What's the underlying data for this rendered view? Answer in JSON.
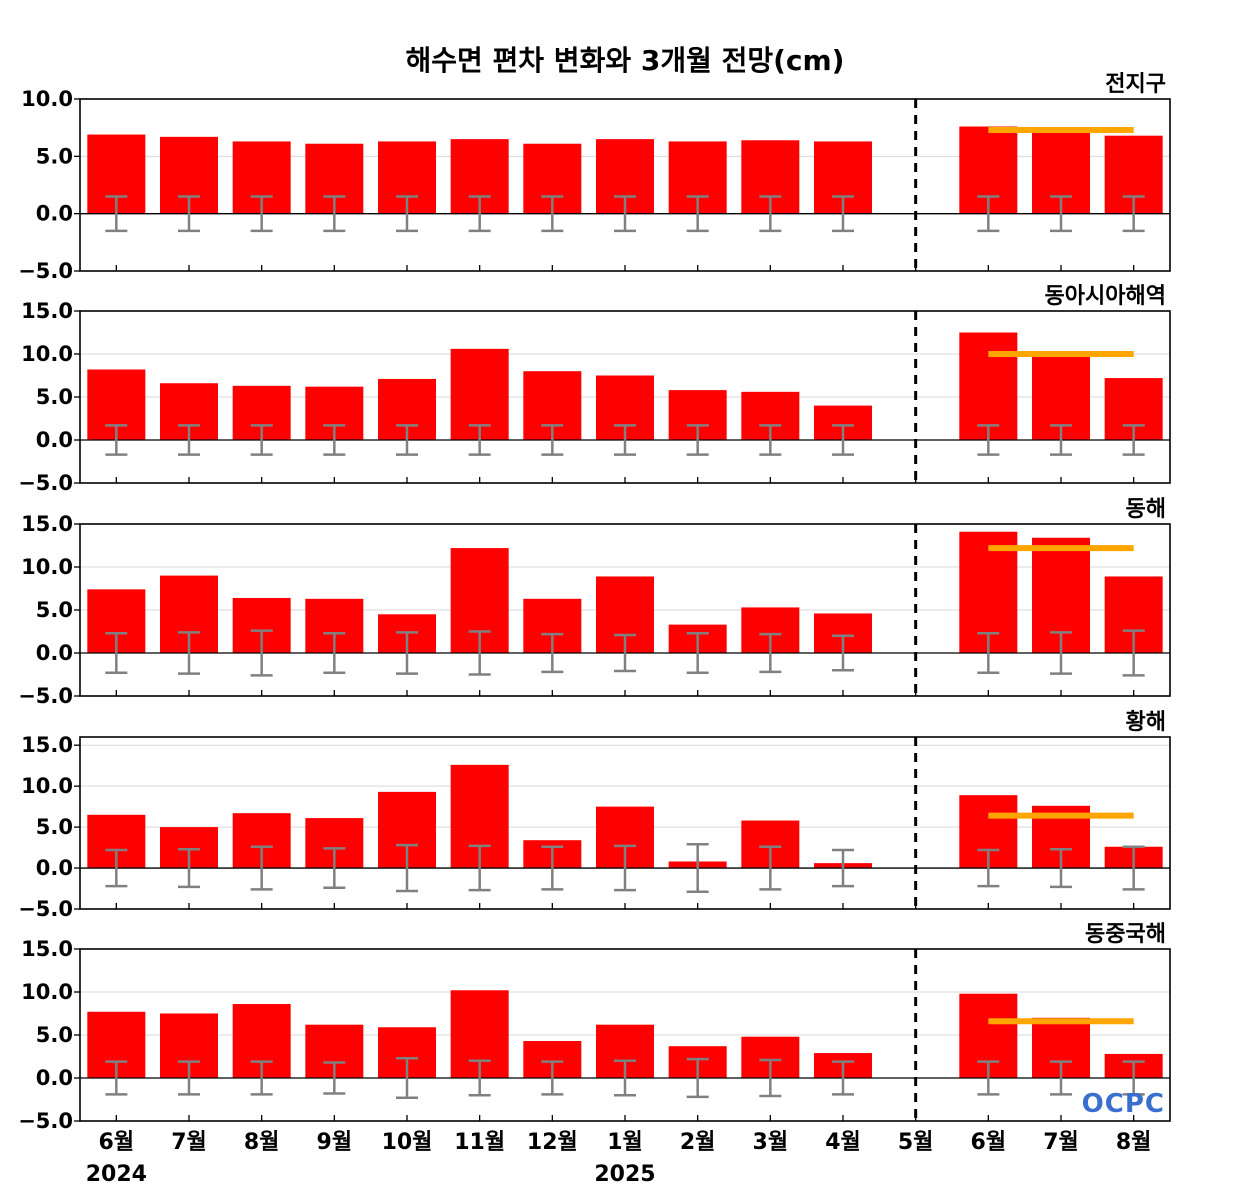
{
  "chart_data": {
    "type": "bar",
    "title": "해수면 편차 변화와 3개월 전망(cm)",
    "categories": [
      "6월",
      "7월",
      "8월",
      "9월",
      "10월",
      "11월",
      "12월",
      "1월",
      "2월",
      "3월",
      "4월",
      "5월",
      "6월",
      "7월",
      "8월"
    ],
    "year_labels": [
      {
        "index": 0,
        "label": "2024"
      },
      {
        "index": 7,
        "label": "2025"
      }
    ],
    "forecast_divider_after_index": 11,
    "logo": "OCPC",
    "colors": {
      "bar": "#ff0000",
      "forecast_line": "#ffa500",
      "error_bar": "#808080",
      "grid": "#d9d9d9"
    },
    "panels": [
      {
        "name": "전지구",
        "ylim": [
          -5,
          10
        ],
        "yticks": [
          -5,
          0,
          5,
          10
        ],
        "ytick_labels": [
          "−5.0",
          "0.0",
          "5.0",
          "10.0"
        ],
        "values": [
          6.9,
          6.7,
          6.3,
          6.1,
          6.3,
          6.5,
          6.1,
          6.5,
          6.3,
          6.4,
          6.3,
          0.0,
          7.6,
          7.4,
          6.8
        ],
        "error": [
          1.5,
          1.5,
          1.5,
          1.5,
          1.5,
          1.5,
          1.5,
          1.5,
          1.5,
          1.5,
          1.5,
          null,
          1.5,
          1.5,
          1.5
        ],
        "forecast_mean": 7.3
      },
      {
        "name": "동아시아해역",
        "ylim": [
          -5,
          15
        ],
        "yticks": [
          -5,
          0,
          5,
          10,
          15
        ],
        "ytick_labels": [
          "−5.0",
          "0.0",
          "5.0",
          "10.0",
          "15.0"
        ],
        "values": [
          8.2,
          6.6,
          6.3,
          6.2,
          7.1,
          10.6,
          8.0,
          7.5,
          5.8,
          5.6,
          4.0,
          0.0,
          12.5,
          10.1,
          7.2
        ],
        "error": [
          1.7,
          1.7,
          1.7,
          1.7,
          1.7,
          1.7,
          1.7,
          1.7,
          1.7,
          1.7,
          1.7,
          null,
          1.7,
          1.7,
          1.7
        ],
        "forecast_mean": 10.0
      },
      {
        "name": "동해",
        "ylim": [
          -5,
          15
        ],
        "yticks": [
          -5,
          0,
          5,
          10,
          15
        ],
        "ytick_labels": [
          "−5.0",
          "0.0",
          "5.0",
          "10.0",
          "15.0"
        ],
        "values": [
          7.4,
          9.0,
          6.4,
          6.3,
          4.5,
          12.2,
          6.3,
          8.9,
          3.3,
          5.3,
          4.6,
          0.0,
          14.1,
          13.4,
          8.9
        ],
        "error": [
          2.3,
          2.4,
          2.6,
          2.3,
          2.4,
          2.5,
          2.2,
          2.1,
          2.3,
          2.2,
          2.0,
          null,
          2.3,
          2.4,
          2.6
        ],
        "forecast_mean": 12.2
      },
      {
        "name": "황해",
        "ylim": [
          -5,
          16
        ],
        "yticks": [
          -5,
          0,
          5,
          10,
          15
        ],
        "ytick_labels": [
          "−5.0",
          "0.0",
          "5.0",
          "10.0",
          "15.0"
        ],
        "values": [
          6.5,
          5.0,
          6.7,
          6.1,
          9.3,
          12.6,
          3.4,
          7.5,
          0.8,
          5.8,
          0.6,
          0.0,
          8.9,
          7.6,
          2.6
        ],
        "error": [
          2.2,
          2.3,
          2.6,
          2.4,
          2.8,
          2.7,
          2.6,
          2.7,
          2.9,
          2.6,
          2.2,
          null,
          2.2,
          2.3,
          2.6
        ],
        "forecast_mean": 6.4
      },
      {
        "name": "동중국해",
        "ylim": [
          -5,
          15
        ],
        "yticks": [
          -5,
          0,
          5,
          10,
          15
        ],
        "ytick_labels": [
          "−5.0",
          "0.0",
          "5.0",
          "10.0",
          "15.0"
        ],
        "values": [
          7.7,
          7.5,
          8.6,
          6.2,
          5.9,
          10.2,
          4.3,
          6.2,
          3.7,
          4.8,
          2.9,
          0.0,
          9.8,
          7.0,
          2.8
        ],
        "error": [
          1.9,
          1.9,
          1.9,
          1.8,
          2.3,
          2.0,
          1.9,
          2.0,
          2.2,
          2.1,
          1.9,
          null,
          1.9,
          1.9,
          1.9
        ],
        "forecast_mean": 6.6
      }
    ]
  }
}
